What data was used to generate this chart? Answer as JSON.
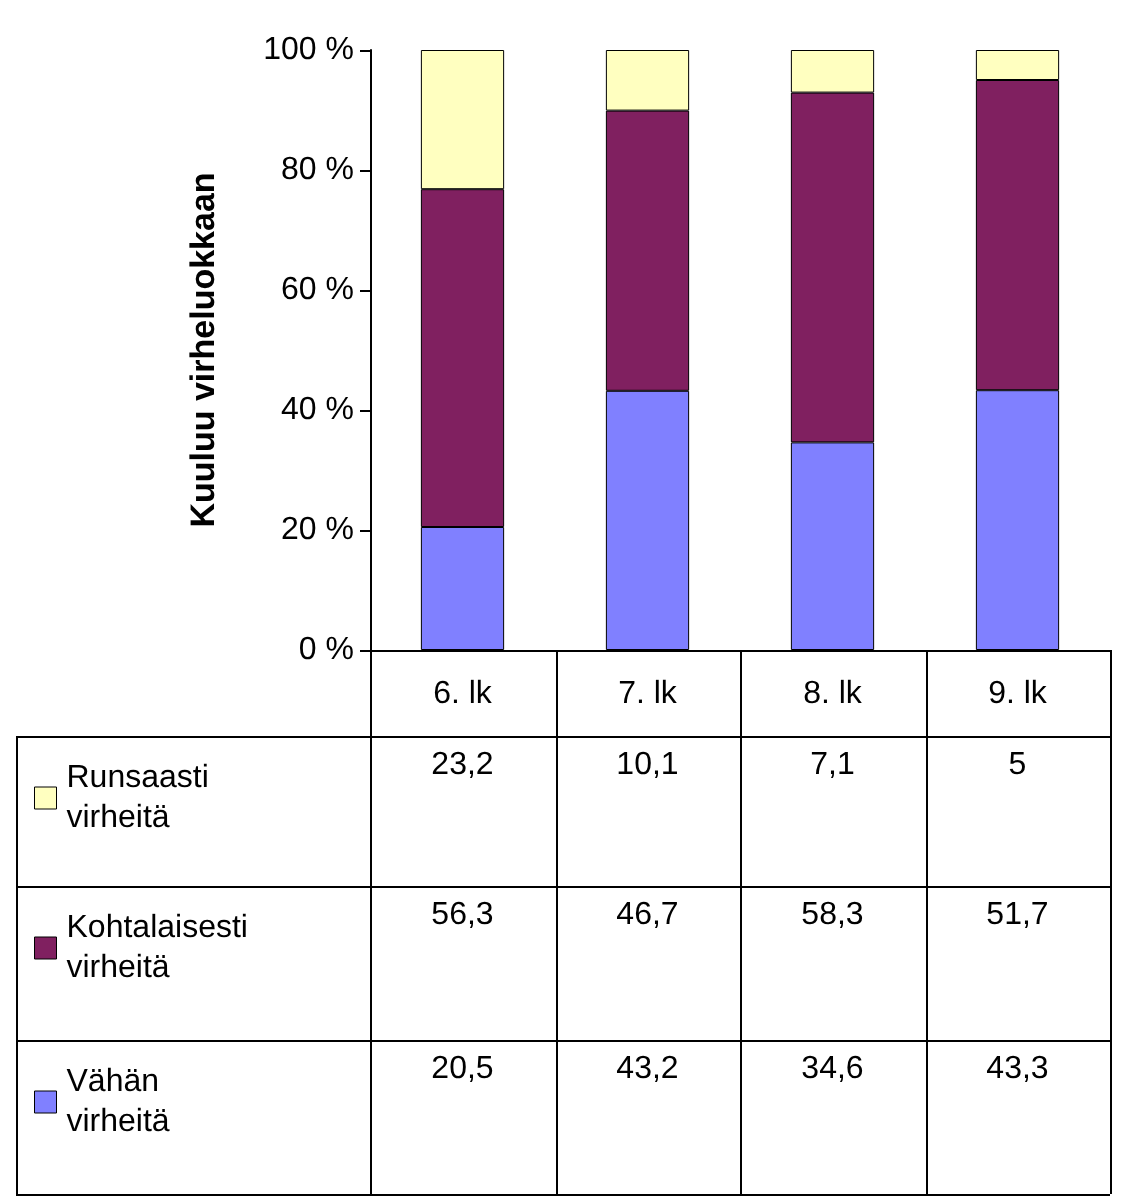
{
  "chart_data": {
    "type": "bar",
    "stacked": true,
    "ylabel": "Kuuluu virheluokkaan",
    "categories": [
      "6. lk",
      "7. lk",
      "8. lk",
      "9. lk"
    ],
    "series": [
      {
        "name": "Vähän virheitä",
        "color": "#8080ff",
        "values": [
          20.5,
          43.2,
          34.6,
          43.3
        ],
        "value_labels": [
          "20,5",
          "43,2",
          "34,6",
          "43,3"
        ]
      },
      {
        "name": "Kohtalaisesti virheitä",
        "color": "#802060",
        "values": [
          56.3,
          46.7,
          58.3,
          51.7
        ],
        "value_labels": [
          "56,3",
          "46,7",
          "58,3",
          "51,7"
        ]
      },
      {
        "name": "Runsaasti virheitä",
        "color": "#ffffc0",
        "values": [
          23.2,
          10.1,
          7.1,
          5
        ],
        "value_labels": [
          "23,2",
          "10,1",
          "7,1",
          "5"
        ]
      }
    ],
    "ylim": [
      0,
      100
    ],
    "yticks": [
      {
        "value": 0,
        "label": "0 %"
      },
      {
        "value": 20,
        "label": "20 %"
      },
      {
        "value": 40,
        "label": "40 %"
      },
      {
        "value": 60,
        "label": "60 %"
      },
      {
        "value": 80,
        "label": "80 %"
      },
      {
        "value": 100,
        "label": "100 %"
      }
    ],
    "grid": false,
    "legend": "bottom"
  }
}
